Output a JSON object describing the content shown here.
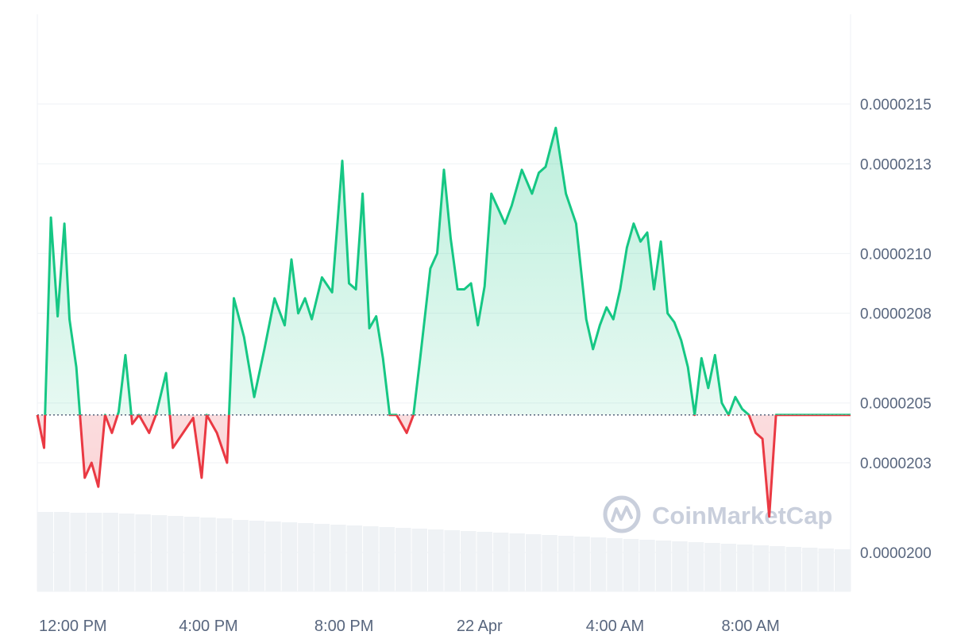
{
  "chart_data": {
    "type": "area",
    "baseline": 2.046e-05,
    "ylim": [
      1.987e-05,
      2.18e-05
    ],
    "y_ticks": [
      "0.0000215",
      "0.0000213",
      "0.0000210",
      "0.0000208",
      "0.0000205",
      "0.0000203",
      "0.0000200"
    ],
    "y_tick_values": [
      2.15e-05,
      2.13e-05,
      2.1e-05,
      2.08e-05,
      2.05e-05,
      2.03e-05,
      2e-05
    ],
    "x_ticks": [
      "12:00 PM",
      "4:00 PM",
      "8:00 PM",
      "22 Apr",
      "4:00 AM",
      "8:00 AM"
    ],
    "x_tick_hours": [
      1.05,
      5.05,
      9.05,
      13.05,
      17.05,
      21.05
    ],
    "x_range_hours": [
      0,
      24
    ],
    "watermark": "CoinMarketCap",
    "colors": {
      "up": "#16c784",
      "down": "#ea3943",
      "grid": "#eff2f5",
      "volume": "#eff2f5",
      "label": "#58667e"
    },
    "series": [
      {
        "hours": [
          0.0,
          0.2,
          0.4,
          0.6,
          0.8,
          0.95,
          1.15,
          1.4,
          1.6,
          1.8,
          2.0,
          2.2,
          2.4,
          2.6,
          2.8,
          3.0,
          3.3,
          3.5,
          3.8,
          4.0,
          4.3,
          4.6,
          4.85,
          5.0,
          5.3,
          5.6,
          5.8,
          6.1,
          6.4,
          6.7,
          7.0,
          7.3,
          7.5,
          7.7,
          7.9,
          8.1,
          8.4,
          8.7,
          9.0,
          9.2,
          9.4,
          9.6,
          9.8,
          10.0,
          10.2,
          10.4,
          10.6,
          10.9,
          11.1,
          11.3,
          11.6,
          11.8,
          12.0,
          12.2,
          12.4,
          12.6,
          12.8,
          13.0,
          13.2,
          13.4,
          13.6,
          13.8,
          14.0,
          14.3,
          14.6,
          14.8,
          15.0,
          15.3,
          15.6,
          15.9,
          16.2,
          16.4,
          16.6,
          16.8,
          17.0,
          17.2,
          17.4,
          17.6,
          17.8,
          18.0,
          18.2,
          18.4,
          18.6,
          18.8,
          19.0,
          19.2,
          19.4,
          19.6,
          19.8,
          20.0,
          20.2,
          20.4,
          20.6,
          20.8,
          21.0,
          21.2,
          21.4,
          21.6,
          21.8,
          22.0,
          22.2,
          22.4,
          22.6,
          22.8,
          23.0,
          23.2,
          23.4,
          23.6,
          23.8,
          24.0
        ],
        "values": [
          2.046e-05,
          2.035e-05,
          2.112e-05,
          2.079e-05,
          2.11e-05,
          2.078e-05,
          2.062e-05,
          2.025e-05,
          2.03e-05,
          2.022e-05,
          2.046e-05,
          2.04e-05,
          2.047e-05,
          2.066e-05,
          2.043e-05,
          2.046e-05,
          2.04e-05,
          2.046e-05,
          2.06e-05,
          2.035e-05,
          2.04e-05,
          2.045e-05,
          2.025e-05,
          2.046e-05,
          2.04e-05,
          2.03e-05,
          2.085e-05,
          2.072e-05,
          2.052e-05,
          2.068e-05,
          2.085e-05,
          2.076e-05,
          2.098e-05,
          2.08e-05,
          2.085e-05,
          2.078e-05,
          2.092e-05,
          2.087e-05,
          2.131e-05,
          2.09e-05,
          2.088e-05,
          2.12e-05,
          2.075e-05,
          2.079e-05,
          2.065e-05,
          2.046e-05,
          2.046e-05,
          2.04e-05,
          2.046e-05,
          2.065e-05,
          2.095e-05,
          2.1e-05,
          2.128e-05,
          2.105e-05,
          2.088e-05,
          2.088e-05,
          2.09e-05,
          2.076e-05,
          2.089e-05,
          2.12e-05,
          2.115e-05,
          2.11e-05,
          2.116e-05,
          2.128e-05,
          2.12e-05,
          2.127e-05,
          2.129e-05,
          2.142e-05,
          2.12e-05,
          2.11e-05,
          2.078e-05,
          2.068e-05,
          2.076e-05,
          2.082e-05,
          2.078e-05,
          2.088e-05,
          2.102e-05,
          2.11e-05,
          2.104e-05,
          2.107e-05,
          2.088e-05,
          2.104e-05,
          2.08e-05,
          2.077e-05,
          2.071e-05,
          2.062e-05,
          2.046e-05,
          2.065e-05,
          2.055e-05,
          2.066e-05,
          2.05e-05,
          2.046e-05,
          2.052e-05,
          2.048e-05,
          2.046e-05,
          2.04e-05,
          2.038e-05,
          2.012e-05,
          2.046e-05,
          2.046e-05,
          2.046e-05,
          2.046e-05,
          2.046e-05,
          2.046e-05,
          2.046e-05,
          2.046e-05,
          2.046e-05,
          2.046e-05,
          2.046e-05,
          2.046e-05
        ]
      }
    ],
    "volume": [
      1.0,
      1.0,
      0.99,
      0.99,
      0.99,
      0.98,
      0.97,
      0.96,
      0.95,
      0.94,
      0.93,
      0.92,
      0.9,
      0.89,
      0.88,
      0.87,
      0.86,
      0.85,
      0.84,
      0.83,
      0.82,
      0.81,
      0.8,
      0.79,
      0.78,
      0.77,
      0.76,
      0.75,
      0.74,
      0.73,
      0.72,
      0.71,
      0.7,
      0.69,
      0.68,
      0.67,
      0.66,
      0.65,
      0.64,
      0.63,
      0.62,
      0.61,
      0.6,
      0.59,
      0.58,
      0.57,
      0.56,
      0.55,
      0.54,
      0.53
    ]
  }
}
